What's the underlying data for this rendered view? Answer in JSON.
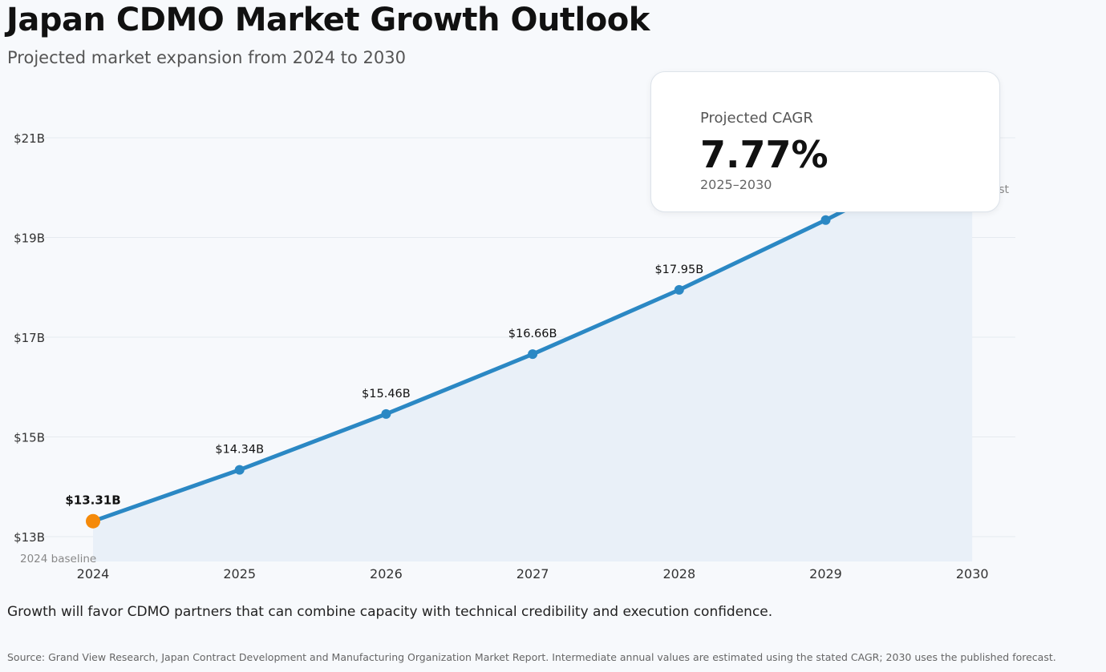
{
  "header": {
    "title": "Japan CDMO Market Growth Outlook",
    "subtitle": "Projected market expansion from 2024 to 2030"
  },
  "callout": {
    "label": "Projected CAGR",
    "value": "7.77%",
    "period": "2025–2030"
  },
  "footnote": "Growth will favor CDMO partners that can combine capacity with technical credibility and execution confidence.",
  "source": "Source: Grand View Research, Japan Contract Development and Manufacturing Organization Market Report. Intermediate annual values are estimated using the stated CAGR; 2030 uses the published forecast.",
  "colors": {
    "line": "#2b88c4",
    "area": "#e9f0f8",
    "baseline_point": "#f58a0a",
    "grid": "#e6eaef"
  },
  "chart_data": {
    "type": "line",
    "title": "Japan CDMO Market Growth Outlook",
    "x": [
      "2024",
      "2025",
      "2026",
      "2027",
      "2028",
      "2029",
      "2030"
    ],
    "series": [
      {
        "values": [
          13.31,
          14.34,
          15.46,
          16.66,
          17.95,
          19.35,
          20.85
        ]
      }
    ],
    "data_labels": [
      "$13.31B",
      "$14.34B",
      "$15.46B",
      "$16.66B",
      "$17.95B",
      "",
      ""
    ],
    "ylim": [
      12.5,
      21.5
    ],
    "yticks": [
      13,
      15,
      17,
      19,
      21
    ],
    "ytick_labels": [
      "$13B",
      "$15B",
      "$17B",
      "$19B",
      "$21B"
    ],
    "annotations": [
      {
        "text": "2024 baseline",
        "x": "2024"
      },
      {
        "text": "st",
        "x": "2030"
      }
    ],
    "grid": true,
    "area_fill": true
  }
}
